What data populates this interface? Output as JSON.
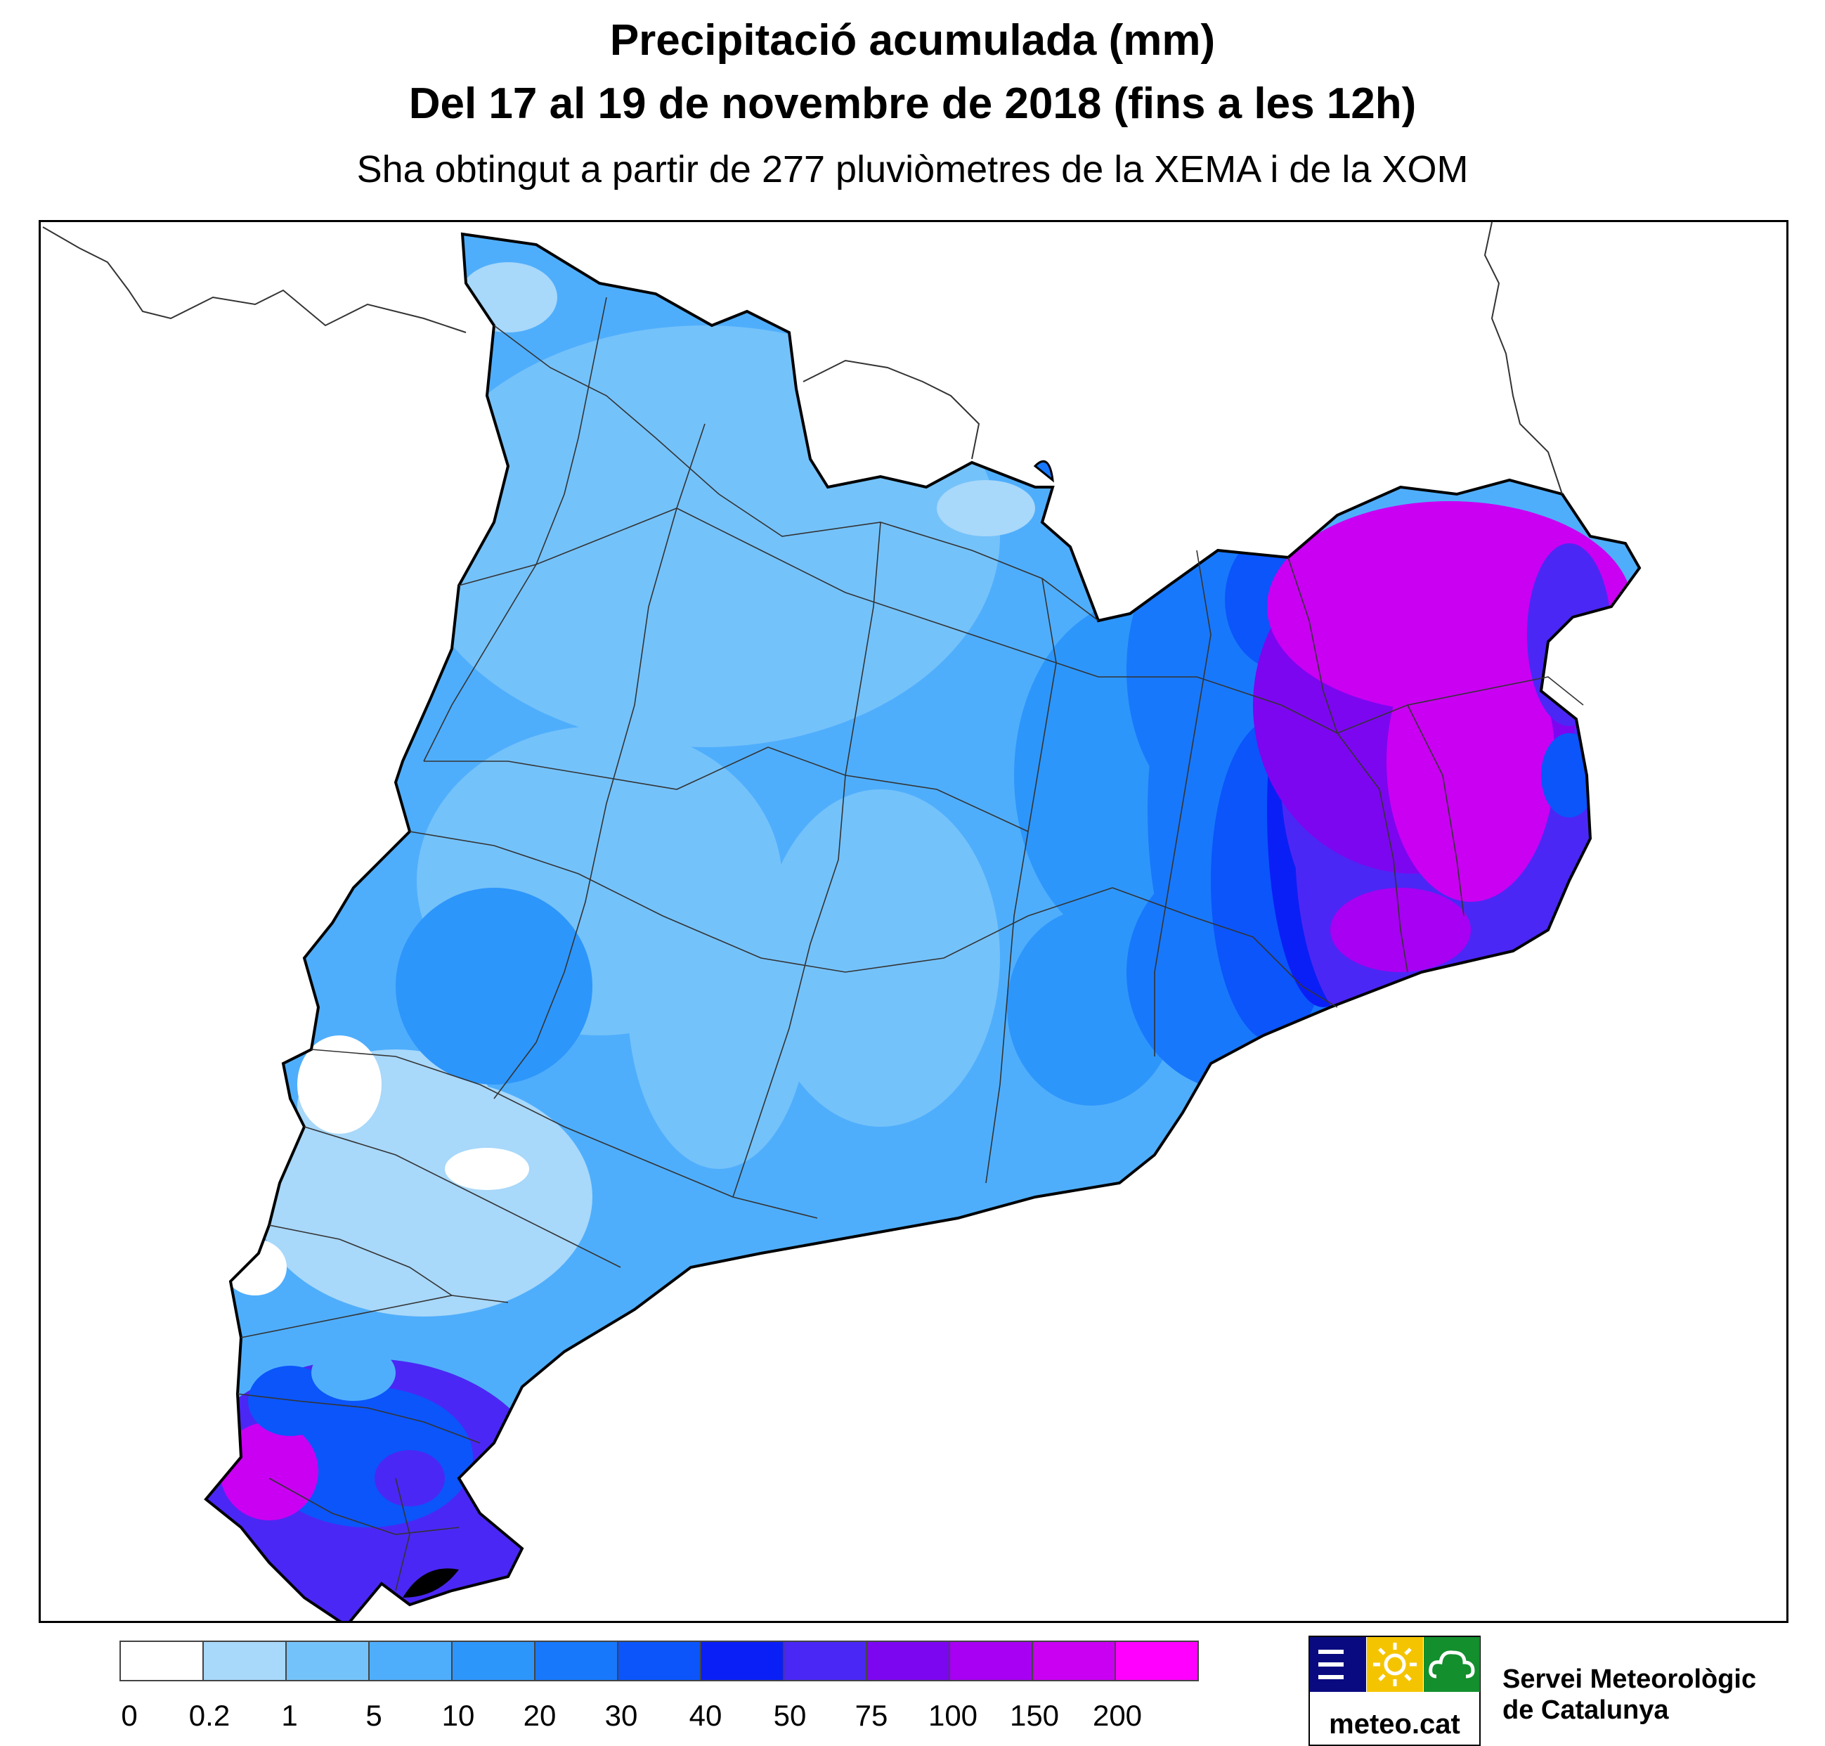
{
  "title_line1": "Precipitació acumulada (mm)",
  "title_line2": "Del 17 al 19 de novembre de 2018 (fins a les 12h)",
  "subtitle": "Sha obtingut a partir de 277 pluviòmetres de la XEMA i de la XOM",
  "legend": {
    "ticks": [
      "0",
      "0.2",
      "1",
      "5",
      "10",
      "20",
      "30",
      "40",
      "50",
      "75",
      "100",
      "150",
      "200"
    ],
    "colors": [
      "#ffffff",
      "#a8d8fa",
      "#74c2fa",
      "#4faefc",
      "#2d96fb",
      "#1878fb",
      "#0b55fb",
      "#0a1ff5",
      "#4b27f5",
      "#7c06f0",
      "#a700f2",
      "#c900f2",
      "#ff00ff"
    ]
  },
  "logo": {
    "text": "meteo.cat",
    "icons": [
      "menu-lines-icon",
      "sun-icon",
      "cloud-icon"
    ],
    "colors": {
      "left": "#0a0a80",
      "middle": "#f5c400",
      "right": "#138f2e"
    }
  },
  "org_line1": "Servei Meteorològic",
  "org_line2": "de Catalunya"
}
